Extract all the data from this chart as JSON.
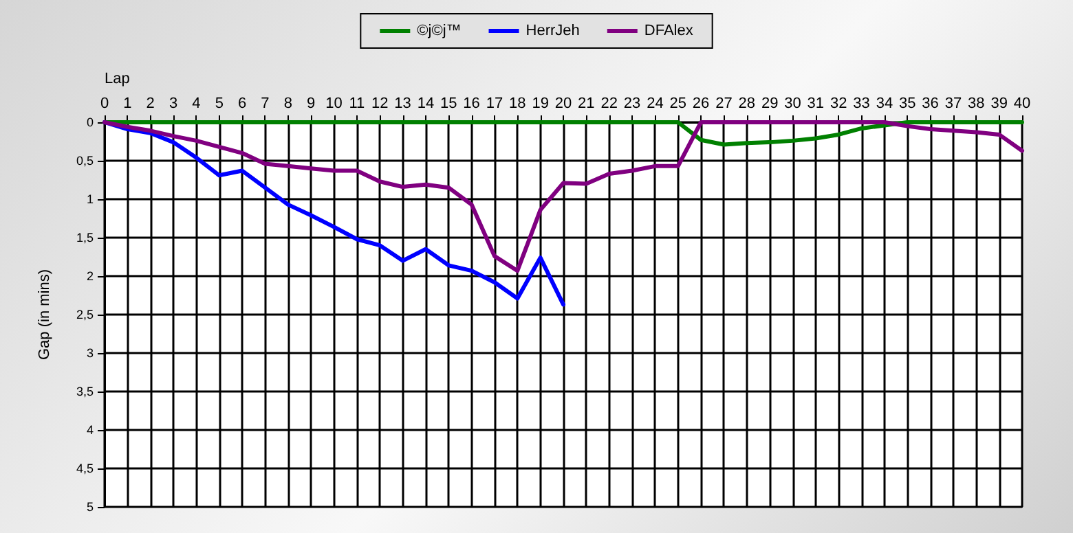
{
  "chart_data": {
    "type": "line",
    "xlabel": "Lap",
    "ylabel": "Gap (in mins)",
    "x": [
      0,
      1,
      2,
      3,
      4,
      5,
      6,
      7,
      8,
      9,
      10,
      11,
      12,
      13,
      14,
      15,
      16,
      17,
      18,
      19,
      20,
      21,
      22,
      23,
      24,
      25,
      26,
      27,
      28,
      29,
      30,
      31,
      32,
      33,
      34,
      35,
      36,
      37,
      38,
      39,
      40
    ],
    "series": [
      {
        "name": "©j©j™",
        "color": "#008000",
        "values": [
          0,
          0,
          0,
          0,
          0,
          0,
          0,
          0,
          0,
          0,
          0,
          0,
          0,
          0,
          0,
          0,
          0,
          0,
          0,
          0,
          0,
          0,
          0,
          0,
          0,
          0,
          0.23,
          0.29,
          0.27,
          0.26,
          0.24,
          0.21,
          0.16,
          0.08,
          0.04,
          0,
          0,
          0,
          0,
          0,
          0
        ]
      },
      {
        "name": "HerrJeh",
        "color": "#0000ff",
        "values": [
          0,
          0.09,
          0.14,
          0.26,
          0.46,
          0.69,
          0.63,
          0.85,
          1.07,
          1.21,
          1.36,
          1.52,
          1.6,
          1.8,
          1.65,
          1.86,
          1.93,
          2.08,
          2.29,
          1.76,
          2.37,
          null,
          null,
          null,
          null,
          null,
          null,
          null,
          null,
          null,
          null,
          null,
          null,
          null,
          null,
          null,
          null,
          null,
          null,
          null,
          null
        ]
      },
      {
        "name": "DFAlex",
        "color": "#800080",
        "values": [
          0,
          0.06,
          0.11,
          0.18,
          0.24,
          0.32,
          0.4,
          0.54,
          0.57,
          0.6,
          0.63,
          0.63,
          0.77,
          0.84,
          0.81,
          0.85,
          1.07,
          1.74,
          1.93,
          1.14,
          0.79,
          0.8,
          0.67,
          0.63,
          0.57,
          0.57,
          0,
          0,
          0,
          0,
          0,
          0,
          0,
          0,
          0,
          0.05,
          0.09,
          0.11,
          0.13,
          0.16,
          0.37
        ]
      }
    ],
    "xlim": [
      0,
      40
    ],
    "xticks": [
      0,
      1,
      2,
      3,
      4,
      5,
      6,
      7,
      8,
      9,
      10,
      11,
      12,
      13,
      14,
      15,
      16,
      17,
      18,
      19,
      20,
      21,
      22,
      23,
      24,
      25,
      26,
      27,
      28,
      29,
      30,
      31,
      32,
      33,
      34,
      35,
      36,
      37,
      38,
      39,
      40
    ],
    "ylim": [
      5,
      0
    ],
    "yticks": [
      0,
      {
        "value": 0.5,
        "label": "0,5"
      },
      1,
      {
        "value": 1.5,
        "label": "1,5"
      },
      2,
      {
        "value": 2.5,
        "label": "2,5"
      },
      3,
      {
        "value": 3.5,
        "label": "3,5"
      },
      4,
      {
        "value": 4.5,
        "label": "4,5"
      },
      5
    ],
    "grid": true,
    "legend": "top",
    "marker": "none",
    "line_style": "solid"
  }
}
